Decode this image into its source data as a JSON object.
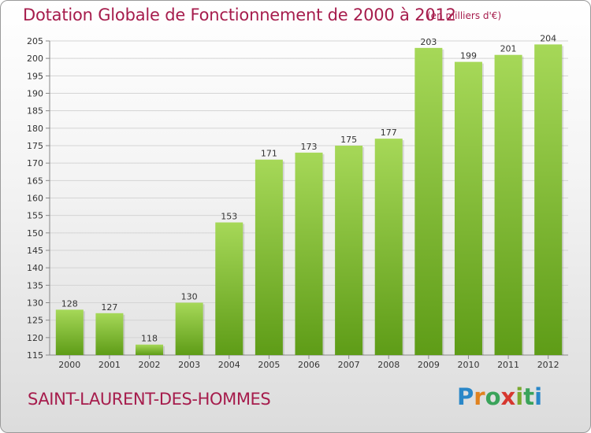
{
  "header": {
    "title": "Dotation Globale de Fonctionnement de 2000 à 2012",
    "unit": "(en milliers d'€)"
  },
  "footer": {
    "commune": "SAINT-LAURENT-DES-HOMMES",
    "logo": "Proxiti"
  },
  "colors": {
    "title": "#a61c4c",
    "bar_light": "#a6d858",
    "bar_dark": "#5e9c17"
  },
  "chart_data": {
    "type": "bar",
    "title": "Dotation Globale de Fonctionnement de 2000 à 2012",
    "subtitle": "(en milliers d'€)",
    "xlabel": "",
    "ylabel": "",
    "categories": [
      "2000",
      "2001",
      "2002",
      "2003",
      "2004",
      "2005",
      "2006",
      "2007",
      "2008",
      "2009",
      "2010",
      "2011",
      "2012"
    ],
    "values": [
      128,
      127,
      118,
      130,
      153,
      171,
      173,
      175,
      177,
      203,
      199,
      201,
      204
    ],
    "ylim": [
      115,
      205
    ],
    "yticks": [
      115,
      120,
      125,
      130,
      135,
      140,
      145,
      150,
      155,
      160,
      165,
      170,
      175,
      180,
      185,
      190,
      195,
      200,
      205
    ],
    "grid": true,
    "legend": "none"
  }
}
